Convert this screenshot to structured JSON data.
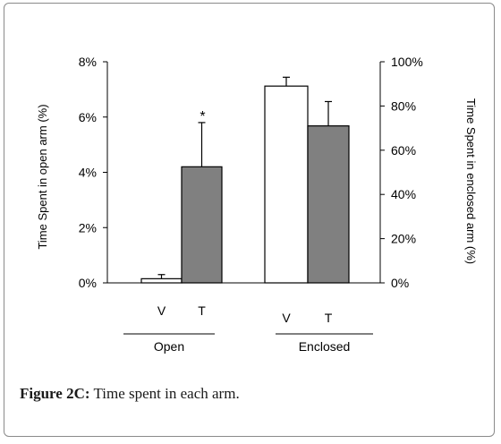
{
  "caption": {
    "label": "Figure 2C:",
    "text": " Time spent in each arm."
  },
  "chart_data": {
    "type": "bar",
    "title": "",
    "groups": [
      {
        "name": "Open",
        "axis": "left",
        "categories": [
          "V",
          "T"
        ],
        "values": [
          0.15,
          4.2
        ],
        "errors": [
          0.15,
          1.6
        ],
        "colors": [
          "#ffffff",
          "#808080"
        ],
        "annotations": [
          "",
          "*"
        ]
      },
      {
        "name": "Enclosed",
        "axis": "right",
        "categories": [
          "V",
          "T"
        ],
        "values": [
          89,
          71
        ],
        "errors": [
          4,
          11
        ],
        "colors": [
          "#ffffff",
          "#808080"
        ],
        "annotations": [
          "",
          ""
        ]
      }
    ],
    "y_left": {
      "label": "Time Spent  in open arm (%)",
      "ylim": [
        0,
        8
      ],
      "ticks": [
        0,
        2,
        4,
        6,
        8
      ],
      "tick_labels": [
        "0%",
        "2%",
        "4%",
        "6%",
        "8%"
      ]
    },
    "y_right": {
      "label": "Time Spent  in enclosed arm  (%)",
      "ylim": [
        0,
        100
      ],
      "ticks": [
        0,
        20,
        40,
        60,
        80,
        100
      ],
      "tick_labels": [
        "0%",
        "20%",
        "40%",
        "60%",
        "80%",
        "100%"
      ]
    },
    "grid": false,
    "legend": "none"
  }
}
